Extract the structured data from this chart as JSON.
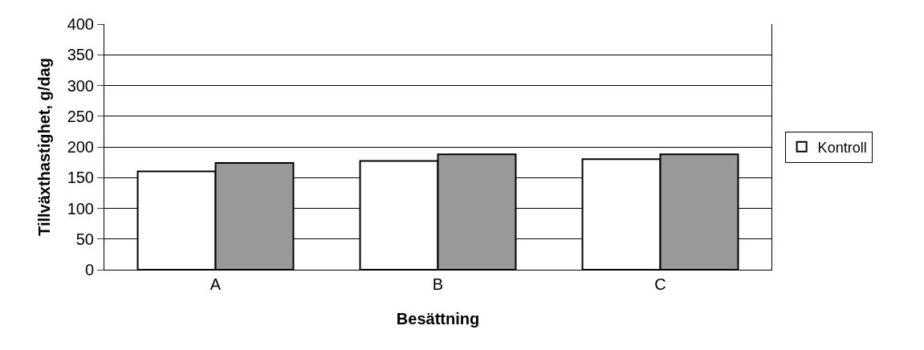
{
  "chart_data": {
    "type": "bar",
    "xlabel": "Besättning",
    "ylabel": "Tillväxthastighet, g/dag",
    "categories": [
      "A",
      "B",
      "C"
    ],
    "series": [
      {
        "name": "Kontroll",
        "color": "#ffffff",
        "values": [
          160,
          177,
          180
        ]
      },
      {
        "color": "#999999",
        "values": [
          174,
          188,
          188
        ]
      }
    ],
    "ylim": [
      0,
      400
    ],
    "yticks": [
      0,
      50,
      100,
      150,
      200,
      250,
      300,
      350,
      400
    ],
    "grid": "y",
    "legend": "right"
  }
}
